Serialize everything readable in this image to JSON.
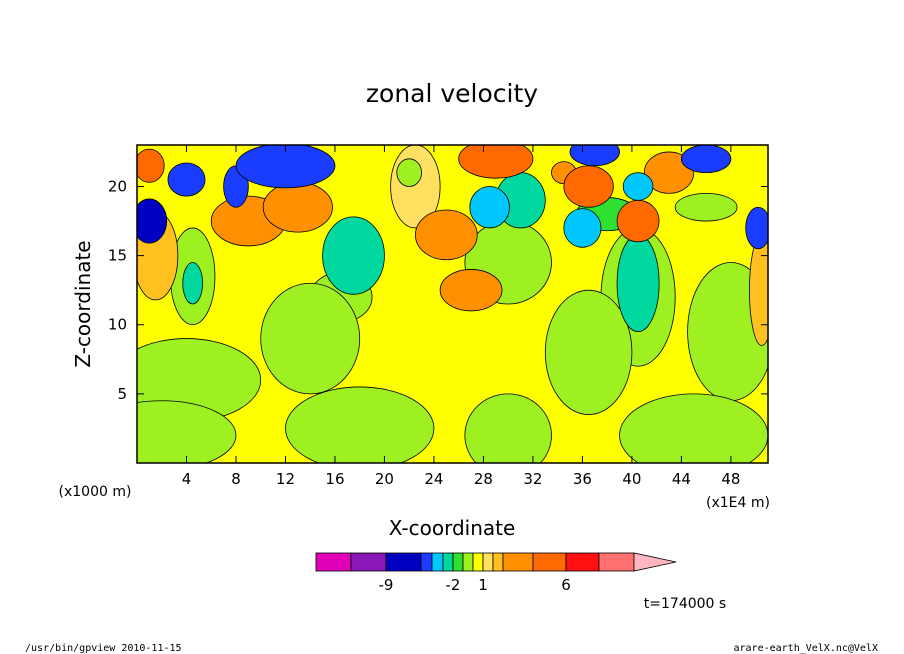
{
  "chart_data": {
    "type": "heatmap",
    "title": "zonal velocity",
    "xlabel": "X-coordinate",
    "ylabel": "Z-coordinate",
    "x_unit_left": "(x1000 m)",
    "x_unit_right": "(x1E4 m)",
    "xlim": [
      0,
      51
    ],
    "ylim": [
      0,
      23
    ],
    "x_ticks": [
      4,
      8,
      12,
      16,
      20,
      24,
      28,
      32,
      36,
      40,
      44,
      48
    ],
    "y_ticks": [
      5,
      10,
      15,
      20
    ],
    "colorbar": {
      "levels": [
        -13,
        -11,
        -9,
        -7,
        -5,
        -3,
        -2,
        -1,
        0,
        1,
        2,
        3,
        4,
        6,
        8,
        10,
        12
      ],
      "colors": [
        "#e000b8",
        "#8a18b8",
        "#0000c0",
        "#1a3cff",
        "#00c8ff",
        "#00d8a0",
        "#30e030",
        "#9ef020",
        "#ffff00",
        "#ffe060",
        "#ffc020",
        "#ff9000",
        "#ff6a00",
        "#ff1010",
        "#ff7070",
        "#ffb6c0"
      ],
      "tick_labels": [
        {
          "value": -9,
          "label": "-9"
        },
        {
          "value": -2,
          "label": "-2"
        },
        {
          "value": 1,
          "label": "1"
        },
        {
          "value": 6,
          "label": "6"
        }
      ]
    },
    "time_label": "t=174000 s",
    "blobs": [
      {
        "x": 1.0,
        "z": 17.5,
        "rx": 1.4,
        "rz": 1.6,
        "v": -9
      },
      {
        "x": 1.5,
        "z": 15.0,
        "rx": 1.8,
        "rz": 3.2,
        "v": 2
      },
      {
        "x": 4.0,
        "z": 20.5,
        "rx": 1.5,
        "rz": 1.2,
        "v": -7
      },
      {
        "x": 4.5,
        "z": 13.5,
        "rx": 1.8,
        "rz": 3.5,
        "v": -1
      },
      {
        "x": 4.5,
        "z": 13.0,
        "rx": 0.8,
        "rz": 1.5,
        "v": -3
      },
      {
        "x": 8.0,
        "z": 20.0,
        "rx": 1.0,
        "rz": 1.5,
        "v": -7
      },
      {
        "x": 9.0,
        "z": 17.5,
        "rx": 3.0,
        "rz": 1.8,
        "v": 3
      },
      {
        "x": 13.0,
        "z": 18.5,
        "rx": 2.8,
        "rz": 1.8,
        "v": 3
      },
      {
        "x": 12.0,
        "z": 21.5,
        "rx": 4.0,
        "rz": 1.6,
        "v": -7
      },
      {
        "x": 17.5,
        "z": 15.0,
        "rx": 2.5,
        "rz": 2.8,
        "v": -3
      },
      {
        "x": 16.5,
        "z": 12.0,
        "rx": 2.5,
        "rz": 1.8,
        "v": -1
      },
      {
        "x": 14.0,
        "z": 9.0,
        "rx": 4.0,
        "rz": 4.0,
        "v": -1
      },
      {
        "x": 4.0,
        "z": 6.0,
        "rx": 6.0,
        "rz": 3.0,
        "v": -1
      },
      {
        "x": 2.0,
        "z": 2.0,
        "rx": 6.0,
        "rz": 2.5,
        "v": -1
      },
      {
        "x": 18.0,
        "z": 2.5,
        "rx": 6.0,
        "rz": 3.0,
        "v": -1
      },
      {
        "x": 22.5,
        "z": 20.0,
        "rx": 2.0,
        "rz": 3.0,
        "v": 1
      },
      {
        "x": 25.0,
        "z": 16.5,
        "rx": 2.5,
        "rz": 1.8,
        "v": 3
      },
      {
        "x": 27.0,
        "z": 12.5,
        "rx": 2.5,
        "rz": 1.5,
        "v": 3
      },
      {
        "x": 28.5,
        "z": 18.5,
        "rx": 1.6,
        "rz": 1.5,
        "v": -5
      },
      {
        "x": 31.0,
        "z": 19.0,
        "rx": 2.0,
        "rz": 2.0,
        "v": -3
      },
      {
        "x": 30.0,
        "z": 14.5,
        "rx": 3.5,
        "rz": 3.0,
        "v": -1
      },
      {
        "x": 29.0,
        "z": 22.0,
        "rx": 3.0,
        "rz": 1.4,
        "v": 4
      },
      {
        "x": 36.5,
        "z": 20.0,
        "rx": 2.0,
        "rz": 1.5,
        "v": 4
      },
      {
        "x": 36.0,
        "z": 17.0,
        "rx": 1.5,
        "rz": 1.4,
        "v": -5
      },
      {
        "x": 37.0,
        "z": 22.5,
        "rx": 2.0,
        "rz": 1.0,
        "v": -7
      },
      {
        "x": 40.5,
        "z": 13.0,
        "rx": 1.7,
        "rz": 3.5,
        "v": -3
      },
      {
        "x": 40.5,
        "z": 12.0,
        "rx": 3.0,
        "rz": 5.0,
        "v": -1
      },
      {
        "x": 40.5,
        "z": 17.5,
        "rx": 1.7,
        "rz": 1.5,
        "v": 4
      },
      {
        "x": 40.5,
        "z": 20.0,
        "rx": 1.2,
        "rz": 1.0,
        "v": -5
      },
      {
        "x": 43.0,
        "z": 21.0,
        "rx": 2.0,
        "rz": 1.5,
        "v": 3
      },
      {
        "x": 46.0,
        "z": 22.0,
        "rx": 2.0,
        "rz": 1.0,
        "v": -7
      },
      {
        "x": 50.2,
        "z": 17.0,
        "rx": 1.0,
        "rz": 1.5,
        "v": -7
      },
      {
        "x": 50.5,
        "z": 12.5,
        "rx": 1.0,
        "rz": 4.0,
        "v": 2
      },
      {
        "x": 48.0,
        "z": 9.5,
        "rx": 3.5,
        "rz": 5.0,
        "v": -1
      },
      {
        "x": 45.0,
        "z": 2.0,
        "rx": 6.0,
        "rz": 3.0,
        "v": -1
      },
      {
        "x": 36.5,
        "z": 8.0,
        "rx": 3.5,
        "rz": 4.5,
        "v": -1
      },
      {
        "x": 30.0,
        "z": 2.0,
        "rx": 3.5,
        "rz": 3.0,
        "v": -1
      },
      {
        "x": 38.0,
        "z": 18.0,
        "rx": 2.5,
        "rz": 1.2,
        "v": -2
      },
      {
        "x": 46.0,
        "z": 18.5,
        "rx": 2.5,
        "rz": 1.0,
        "v": -1
      },
      {
        "x": 1.0,
        "z": 21.5,
        "rx": 1.2,
        "rz": 1.2,
        "v": 4
      },
      {
        "x": 22.0,
        "z": 21.0,
        "rx": 1.0,
        "rz": 1.0,
        "v": -1
      },
      {
        "x": 34.5,
        "z": 21.0,
        "rx": 1.0,
        "rz": 0.8,
        "v": 3
      }
    ]
  },
  "footer": {
    "left": "/usr/bin/gpview   2010-11-15",
    "right": "arare-earth_VelX.nc@VelX"
  }
}
